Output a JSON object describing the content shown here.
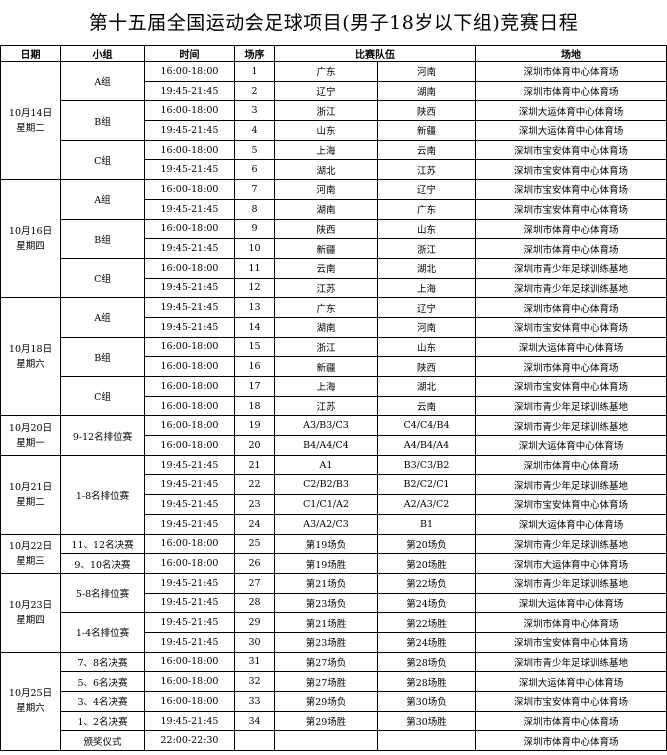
{
  "title": "第十五届全国运动会足球项目(男子18岁以下组)竞赛日程",
  "headers": {
    "date": "日期",
    "group": "小组",
    "time": "时间",
    "no": "场序",
    "teams": "比赛队伍",
    "venue": "场地"
  },
  "days": [
    {
      "date": "10月14日",
      "weekday": "星期二",
      "groups": [
        {
          "name": "A组",
          "matches": [
            {
              "time": "16:00-18:00",
              "no": "1",
              "home": "广东",
              "away": "河南",
              "venue": "深圳市体育中心体育场"
            },
            {
              "time": "19:45-21:45",
              "no": "2",
              "home": "辽宁",
              "away": "湖南",
              "venue": "深圳市体育中心体育场"
            }
          ]
        },
        {
          "name": "B组",
          "matches": [
            {
              "time": "16:00-18:00",
              "no": "3",
              "home": "浙江",
              "away": "陕西",
              "venue": "深圳大运体育中心体育场"
            },
            {
              "time": "19:45-21:45",
              "no": "4",
              "home": "山东",
              "away": "新疆",
              "venue": "深圳大运体育中心体育场"
            }
          ]
        },
        {
          "name": "C组",
          "matches": [
            {
              "time": "16:00-18:00",
              "no": "5",
              "home": "上海",
              "away": "云南",
              "venue": "深圳市宝安体育中心体育场"
            },
            {
              "time": "19:45-21:45",
              "no": "6",
              "home": "湖北",
              "away": "江苏",
              "venue": "深圳市宝安体育中心体育场"
            }
          ]
        }
      ]
    },
    {
      "date": "10月16日",
      "weekday": "星期四",
      "groups": [
        {
          "name": "A组",
          "matches": [
            {
              "time": "16:00-18:00",
              "no": "7",
              "home": "河南",
              "away": "辽宁",
              "venue": "深圳市宝安体育中心体育场"
            },
            {
              "time": "19:45-21:45",
              "no": "8",
              "home": "湖南",
              "away": "广东",
              "venue": "深圳市宝安体育中心体育场"
            }
          ]
        },
        {
          "name": "B组",
          "matches": [
            {
              "time": "16:00-18:00",
              "no": "9",
              "home": "陕西",
              "away": "山东",
              "venue": "深圳市体育中心体育场"
            },
            {
              "time": "19:45-21:45",
              "no": "10",
              "home": "新疆",
              "away": "浙江",
              "venue": "深圳市体育中心体育场"
            }
          ]
        },
        {
          "name": "C组",
          "matches": [
            {
              "time": "16:00-18:00",
              "no": "11",
              "home": "云南",
              "away": "湖北",
              "venue": "深圳市青少年足球训练基地"
            },
            {
              "time": "19:45-21:45",
              "no": "12",
              "home": "江苏",
              "away": "上海",
              "venue": "深圳市青少年足球训练基地"
            }
          ]
        }
      ]
    },
    {
      "date": "10月18日",
      "weekday": "星期六",
      "groups": [
        {
          "name": "A组",
          "matches": [
            {
              "time": "19:45-21:45",
              "no": "13",
              "home": "广东",
              "away": "辽宁",
              "venue": "深圳市体育中心体育场"
            },
            {
              "time": "19:45-21:45",
              "no": "14",
              "home": "湖南",
              "away": "河南",
              "venue": "深圳市宝安体育中心体育场"
            }
          ]
        },
        {
          "name": "B组",
          "matches": [
            {
              "time": "16:00-18:00",
              "no": "15",
              "home": "浙江",
              "away": "山东",
              "venue": "深圳大运体育中心体育场"
            },
            {
              "time": "16:00-18:00",
              "no": "16",
              "home": "新疆",
              "away": "陕西",
              "venue": "深圳市体育中心体育场"
            }
          ]
        },
        {
          "name": "C组",
          "matches": [
            {
              "time": "16:00-18:00",
              "no": "17",
              "home": "上海",
              "away": "湖北",
              "venue": "深圳市宝安体育中心体育场"
            },
            {
              "time": "16:00-18:00",
              "no": "18",
              "home": "江苏",
              "away": "云南",
              "venue": "深圳市青少年足球训练基地"
            }
          ]
        }
      ]
    },
    {
      "date": "10月20日",
      "weekday": "星期一",
      "groups": [
        {
          "name": "9-12名排位赛",
          "matches": [
            {
              "time": "16:00-18:00",
              "no": "19",
              "home": "A3/B3/C3",
              "away": "C4/C4/B4",
              "venue": "深圳市青少年足球训练基地"
            },
            {
              "time": "16:00-18:00",
              "no": "20",
              "home": "B4/A4/C4",
              "away": "A4/B4/A4",
              "venue": "深圳大运体育中心体育场"
            }
          ]
        }
      ]
    },
    {
      "date": "10月21日",
      "weekday": "星期二",
      "groups": [
        {
          "name": "1-8名排位赛",
          "matches": [
            {
              "time": "19:45-21:45",
              "no": "21",
              "home": "A1",
              "away": "B3/C3/B2",
              "venue": "深圳市体育中心体育场"
            },
            {
              "time": "19:45-21:45",
              "no": "22",
              "home": "C2/B2/B3",
              "away": "B2/C2/C1",
              "venue": "深圳市青少年足球训练基地"
            },
            {
              "time": "19:45-21:45",
              "no": "23",
              "home": "C1/C1/A2",
              "away": "A2/A3/C2",
              "venue": "深圳市宝安体育中心体育场"
            },
            {
              "time": "19:45-21:45",
              "no": "24",
              "home": "A3/A2/C3",
              "away": "B1",
              "venue": "深圳大运体育中心体育场"
            }
          ]
        }
      ]
    },
    {
      "date": "10月22日",
      "weekday": "星期三",
      "groups": [
        {
          "name": "11、12名决赛",
          "matches": [
            {
              "time": "16:00-18:00",
              "no": "25",
              "home": "第19场负",
              "away": "第20场负",
              "venue": "深圳市青少年足球训练基地"
            }
          ]
        },
        {
          "name": "9、10名决赛",
          "matches": [
            {
              "time": "16:00-18:00",
              "no": "26",
              "home": "第19场胜",
              "away": "第20场胜",
              "venue": "深圳市大运体育中心体育场"
            }
          ]
        }
      ]
    },
    {
      "date": "10月23日",
      "weekday": "星期四",
      "groups": [
        {
          "name": "5-8名排位赛",
          "matches": [
            {
              "time": "19:45-21:45",
              "no": "27",
              "home": "第21场负",
              "away": "第22场负",
              "venue": "深圳市青少年足球训练基地"
            },
            {
              "time": "19:45-21:45",
              "no": "28",
              "home": "第23场负",
              "away": "第24场负",
              "venue": "深圳大运体育中心体育场"
            }
          ]
        },
        {
          "name": "1-4名排位赛",
          "matches": [
            {
              "time": "19:45-21:45",
              "no": "29",
              "home": "第21场胜",
              "away": "第22场胜",
              "venue": "深圳市体育中心体育场"
            },
            {
              "time": "19:45-21:45",
              "no": "30",
              "home": "第23场胜",
              "away": "第24场胜",
              "venue": "深圳市宝安体育中心体育场"
            }
          ]
        }
      ]
    },
    {
      "date": "10月25日",
      "weekday": "星期六",
      "groups": [
        {
          "name": "7、8名决赛",
          "matches": [
            {
              "time": "16:00-18:00",
              "no": "31",
              "home": "第27场负",
              "away": "第28场负",
              "venue": "深圳市青少年足球训练基地"
            }
          ]
        },
        {
          "name": "5、6名决赛",
          "matches": [
            {
              "time": "16:00-18:00",
              "no": "32",
              "home": "第27场胜",
              "away": "第28场胜",
              "venue": "深圳大运体育中心体育场"
            }
          ]
        },
        {
          "name": "3、4名决赛",
          "matches": [
            {
              "time": "16:00-18:00",
              "no": "33",
              "home": "第29场负",
              "away": "第30场负",
              "venue": "深圳市宝安体育中心体育场"
            }
          ]
        },
        {
          "name": "1、2名决赛",
          "matches": [
            {
              "time": "19:45-21:45",
              "no": "34",
              "home": "第29场胜",
              "away": "第30场胜",
              "venue": "深圳市体育中心体育场"
            }
          ]
        },
        {
          "name": "颁奖仪式",
          "matches": [
            {
              "time": "22:00-22:30",
              "no": "",
              "home": "",
              "away": "",
              "venue": "深圳市体育中心体育场"
            }
          ]
        }
      ]
    }
  ]
}
